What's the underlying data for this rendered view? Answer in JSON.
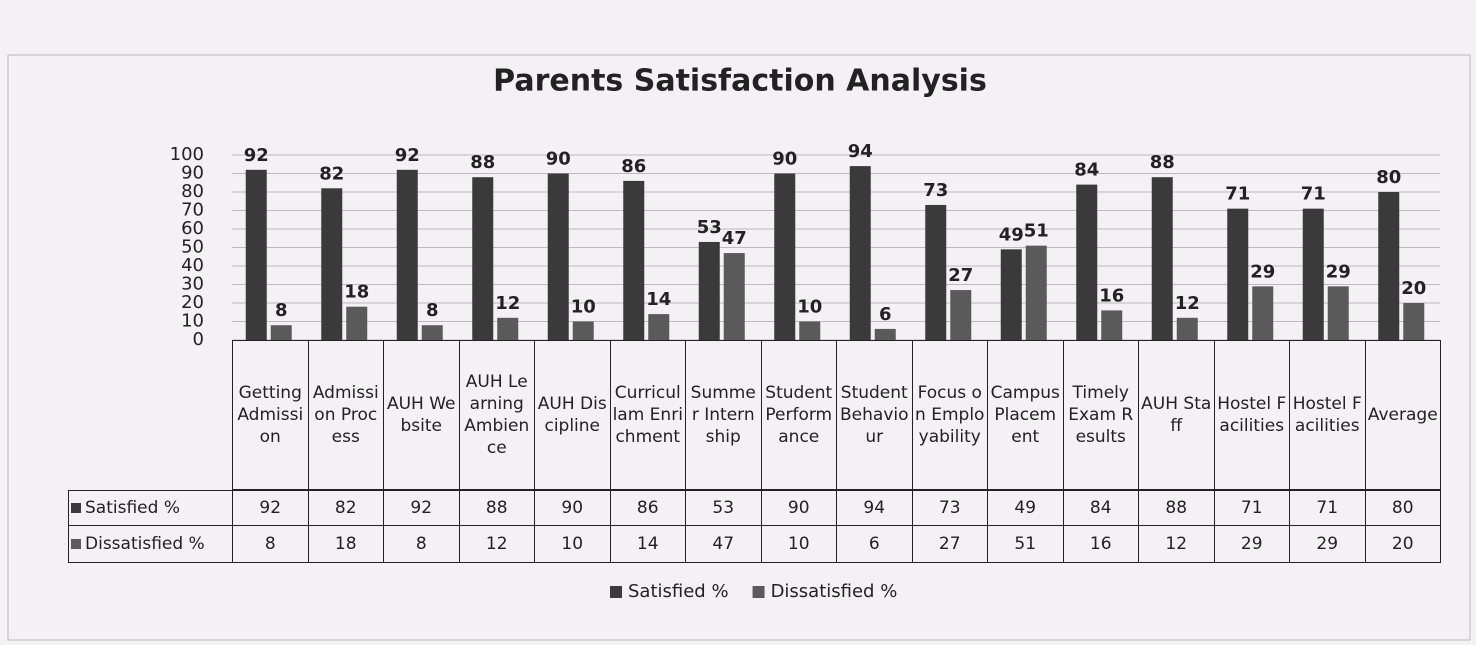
{
  "chart_data": {
    "type": "bar",
    "title": "Parents Satisfaction Analysis",
    "categories": [
      "Getting Admission",
      "Admission Process",
      "AUH Website",
      "AUH Learning Ambience",
      "AUH Discipline",
      "Curricullam Enrichment",
      "Summer Internship",
      "Student Performance",
      "Student Behaviour",
      "Focus on Employability",
      "Campus Placement",
      "Timely Exam Results",
      "AUH Staff",
      "Hostel Facilities",
      "Hostel Facilities",
      "Average"
    ],
    "series": [
      {
        "name": "Satisfied %",
        "color": "#3a3a3a",
        "values": [
          92,
          82,
          92,
          88,
          90,
          86,
          53,
          90,
          94,
          73,
          49,
          84,
          88,
          71,
          71,
          80
        ]
      },
      {
        "name": "Dissatisfied %",
        "color": "#5a5a5a",
        "values": [
          8,
          18,
          8,
          12,
          10,
          14,
          47,
          10,
          6,
          27,
          51,
          16,
          12,
          29,
          29,
          20
        ]
      }
    ],
    "ylim": [
      0,
      100
    ],
    "yticks": [
      0,
      10,
      20,
      30,
      40,
      50,
      60,
      70,
      80,
      90,
      100
    ],
    "grid": true,
    "legend": "bottom"
  }
}
